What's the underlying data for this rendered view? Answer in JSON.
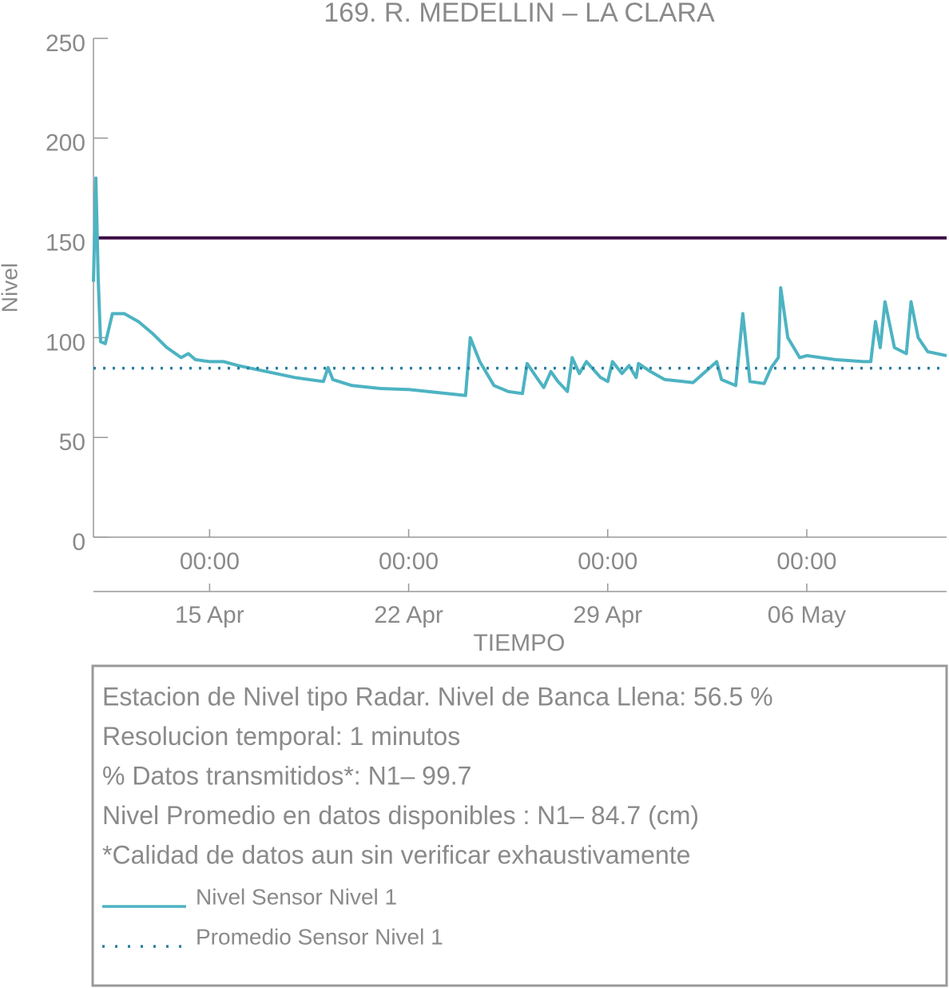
{
  "chart_data": {
    "type": "line",
    "title": "169. R. MEDELLIN – LA CLARA",
    "ylabel": "Nivel",
    "xlabel": "TIEMPO",
    "xlim": [
      "10 Apr 22:00",
      "10 May 22:00"
    ],
    "xticks": [
      {
        "value": "15 Apr 00:00",
        "label": [
          "00:00",
          "15 Apr"
        ]
      },
      {
        "value": "22 Apr 00:00",
        "label": [
          "00:00",
          "22 Apr"
        ]
      },
      {
        "value": "29 Apr 00:00",
        "label": [
          "00:00",
          "29 Apr"
        ]
      },
      {
        "value": "06 May 00:00",
        "label": [
          "00:00",
          "06 May"
        ]
      }
    ],
    "ylim": [
      0,
      250
    ],
    "yticks": [
      0,
      50,
      100,
      150,
      200,
      250
    ],
    "reference_lines": [
      {
        "value": 150,
        "color": "#3b0a45"
      }
    ],
    "x": [
      "10 Apr 22:00",
      "11 Apr 00:00",
      "11 Apr 02:00",
      "11 Apr 04:00",
      "11 Apr 08:00",
      "11 Apr 14:00",
      "12 Apr 00:00",
      "12 Apr 12:00",
      "13 Apr 00:00",
      "13 Apr 12:00",
      "14 Apr 00:00",
      "14 Apr 06:00",
      "14 Apr 12:00",
      "15 Apr 00:00",
      "15 Apr 12:00",
      "16 Apr 00:00",
      "17 Apr 00:00",
      "18 Apr 00:00",
      "19 Apr 00:00",
      "19 Apr 04:00",
      "19 Apr 08:00",
      "20 Apr 00:00",
      "21 Apr 00:00",
      "22 Apr 00:00",
      "23 Apr 00:00",
      "24 Apr 00:00",
      "24 Apr 04:00",
      "24 Apr 12:00",
      "25 Apr 00:00",
      "25 Apr 12:00",
      "26 Apr 00:00",
      "26 Apr 04:00",
      "26 Apr 12:00",
      "26 Apr 18:00",
      "27 Apr 00:00",
      "27 Apr 06:00",
      "27 Apr 14:00",
      "27 Apr 18:00",
      "28 Apr 00:00",
      "28 Apr 06:00",
      "28 Apr 18:00",
      "29 Apr 00:00",
      "29 Apr 04:00",
      "29 Apr 12:00",
      "29 Apr 18:00",
      "30 Apr 00:00",
      "30 Apr 02:00",
      "30 Apr 12:00",
      "01 May 00:00",
      "02 May 00:00",
      "02 May 20:00",
      "03 May 00:00",
      "03 May 12:00",
      "03 May 18:00",
      "04 May 00:00",
      "04 May 12:00",
      "04 May 18:00",
      "05 May 00:00",
      "05 May 02:00",
      "05 May 08:00",
      "05 May 18:00",
      "06 May 00:00",
      "07 May 00:00",
      "08 May 00:00",
      "08 May 06:00",
      "08 May 10:00",
      "08 May 14:00",
      "08 May 18:00",
      "09 May 02:00",
      "09 May 12:00",
      "09 May 16:00",
      "09 May 22:00",
      "10 May 06:00",
      "10 May 22:00"
    ],
    "series": [
      {
        "name": "Nivel Sensor Nivel 1",
        "color": "#4db3c2",
        "values": [
          128,
          180,
          130,
          98,
          97,
          112,
          112,
          108,
          102,
          95,
          90,
          92,
          89,
          88,
          88,
          86,
          83,
          80,
          78,
          85,
          79,
          76,
          74.5,
          74,
          72.5,
          71,
          100,
          88,
          76,
          73,
          72,
          87,
          80,
          75,
          83,
          78,
          73,
          90,
          82,
          88,
          80,
          78,
          88,
          82,
          86,
          80,
          87,
          83,
          79,
          77.5,
          88,
          79,
          76,
          112,
          78,
          77,
          85,
          90,
          125,
          100,
          90,
          91,
          89,
          88,
          88,
          108,
          95,
          118,
          95,
          92,
          118,
          100,
          93,
          91
        ]
      },
      {
        "name": "Promedio Sensor Nivel 1",
        "color": "#2a7f9e",
        "style": "dotted",
        "value": 84.7
      }
    ],
    "notes": [
      "Estacion de Nivel tipo Radar. Nivel de Banca Llena: 56.5 %",
      "Resolucion temporal: 1 minutos",
      "% Datos transmitidos*: N1– 99.7",
      "Nivel Promedio en datos disponibles : N1– 84.7 (cm)",
      "*Calidad de datos aun sin verificar exhaustivamente"
    ]
  }
}
